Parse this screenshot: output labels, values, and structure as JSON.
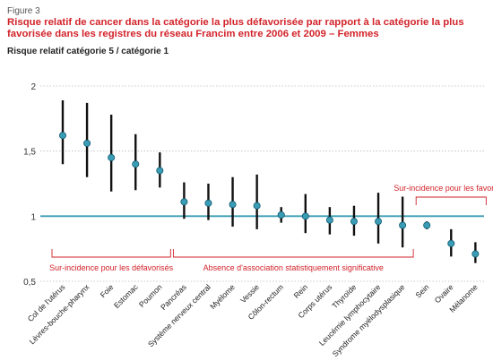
{
  "figure_label": "Figure 3",
  "chart_data": {
    "type": "scatter",
    "title": "Risque relatif de cancer dans la catégorie la plus défavorisée par rapport à la catégorie la plus favorisée dans les registres du réseau Francim entre 2006 et 2009 – Femmes",
    "ylabel": "Risque relatif catégorie 5 / catégorie 1",
    "xlabel": "",
    "ylim": [
      0.5,
      2
    ],
    "yticks": [
      "0,5",
      "1",
      "1,5",
      "2"
    ],
    "grid": "horizontal",
    "reference_line": 1,
    "categories": [
      "Col de l'utérus",
      "Lèvres-bouche-pharynx",
      "Foie",
      "Estomac",
      "Poumon",
      "Pancréas",
      "Système nerveux central",
      "Myélome",
      "Vessie",
      "Côlon-rectum",
      "Rein",
      "Corps utérus",
      "Thyroïde",
      "Leucémie lymphocytaire",
      "Syndrome myélodysplasique",
      "Sein",
      "Ovaire",
      "Mélanome"
    ],
    "values": [
      1.62,
      1.56,
      1.45,
      1.4,
      1.35,
      1.11,
      1.1,
      1.09,
      1.08,
      1.01,
      1.0,
      0.97,
      0.96,
      0.96,
      0.93,
      0.93,
      0.79,
      0.71
    ],
    "ci_low": [
      1.4,
      1.3,
      1.19,
      1.2,
      1.22,
      0.98,
      0.97,
      0.92,
      0.9,
      0.95,
      0.87,
      0.86,
      0.85,
      0.79,
      0.76,
      0.9,
      0.69,
      0.64
    ],
    "ci_high": [
      1.89,
      1.87,
      1.78,
      1.63,
      1.49,
      1.26,
      1.25,
      1.3,
      1.32,
      1.07,
      1.17,
      1.07,
      1.08,
      1.18,
      1.15,
      0.96,
      0.9,
      0.8
    ],
    "groups": [
      {
        "label": "Sur-incidence pour les défavorisés",
        "from": 0,
        "to": 4,
        "side": "below"
      },
      {
        "label": "Absence d'association statistiquement significative",
        "from": 5,
        "to": 14,
        "side": "below"
      },
      {
        "label": "Sur-incidence pour les favorisés",
        "from": 15,
        "to": 17,
        "side": "above"
      }
    ],
    "colors": {
      "point": "#3a9db5",
      "point_stroke": "#0f5970",
      "ci": "#111111",
      "reference": "#3a9db5",
      "grid": "#bbbbbb",
      "annotation": "#d2232a"
    }
  }
}
